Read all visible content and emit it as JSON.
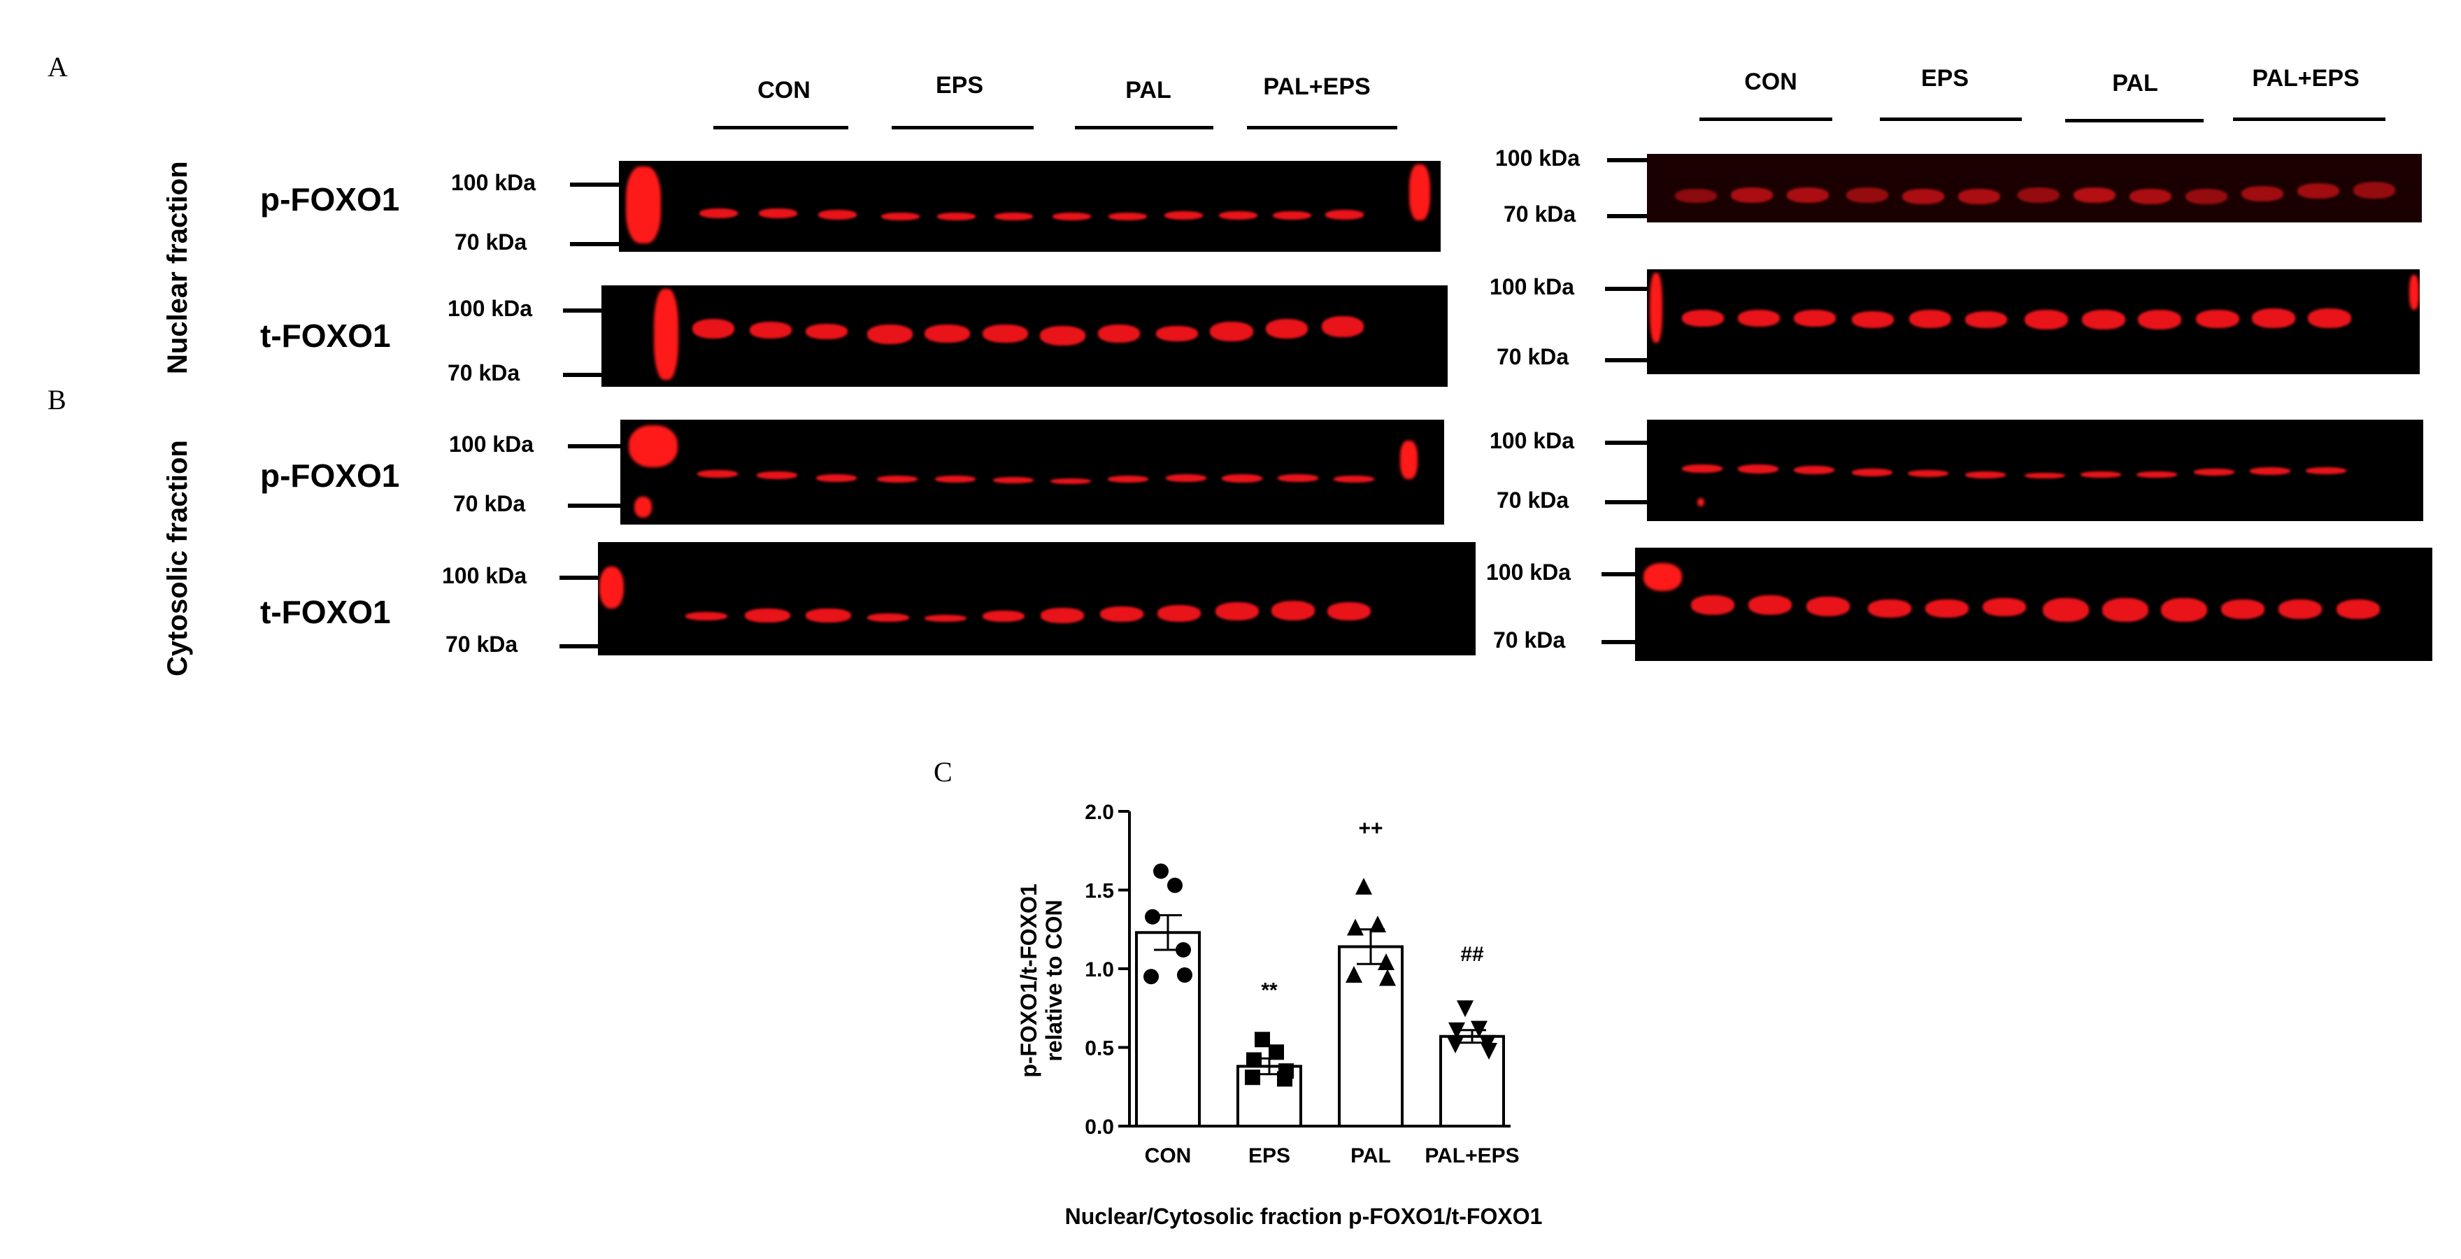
{
  "panels": {
    "a": "A",
    "b": "B",
    "c": "C"
  },
  "groups": [
    "CON",
    "EPS",
    "PAL",
    "PAL+EPS"
  ],
  "row_labels": {
    "nuclear": "Nuclear fraction",
    "cytosolic": "Cytosolic fraction"
  },
  "blot_labels": {
    "p": "p-FOXO1",
    "t": "t-FOXO1"
  },
  "markers": {
    "kda100": "100 kDa",
    "kda70": "70 kDa"
  },
  "band_color": "#e8141a",
  "chart_data": {
    "type": "bar",
    "categories": [
      "CON",
      "EPS",
      "PAL",
      "PAL+EPS"
    ],
    "values": [
      1.23,
      0.38,
      1.14,
      0.57
    ],
    "sem": [
      0.11,
      0.05,
      0.11,
      0.04
    ],
    "points": [
      [
        1.62,
        1.53,
        1.33,
        1.12,
        0.95,
        0.96
      ],
      [
        0.55,
        0.47,
        0.42,
        0.3,
        0.31,
        0.35
      ],
      [
        1.52,
        1.28,
        1.26,
        1.04,
        0.96,
        0.94
      ],
      [
        0.75,
        0.62,
        0.61,
        0.53,
        0.52,
        0.48
      ]
    ],
    "markers": [
      "circle",
      "square",
      "triangle-up",
      "triangle-down"
    ],
    "significance": [
      "",
      "**",
      "++",
      "##"
    ],
    "ylabel_line1": "p-FOXO1/t-FOXO1",
    "ylabel_line2": "relative to CON",
    "xlabel": "Nuclear/Cytosolic fraction p-FOXO1/t-FOXO1",
    "ylim": [
      0,
      2.0
    ],
    "yticks": [
      "0.0",
      "0.5",
      "1.0",
      "1.5",
      "2.0"
    ]
  }
}
